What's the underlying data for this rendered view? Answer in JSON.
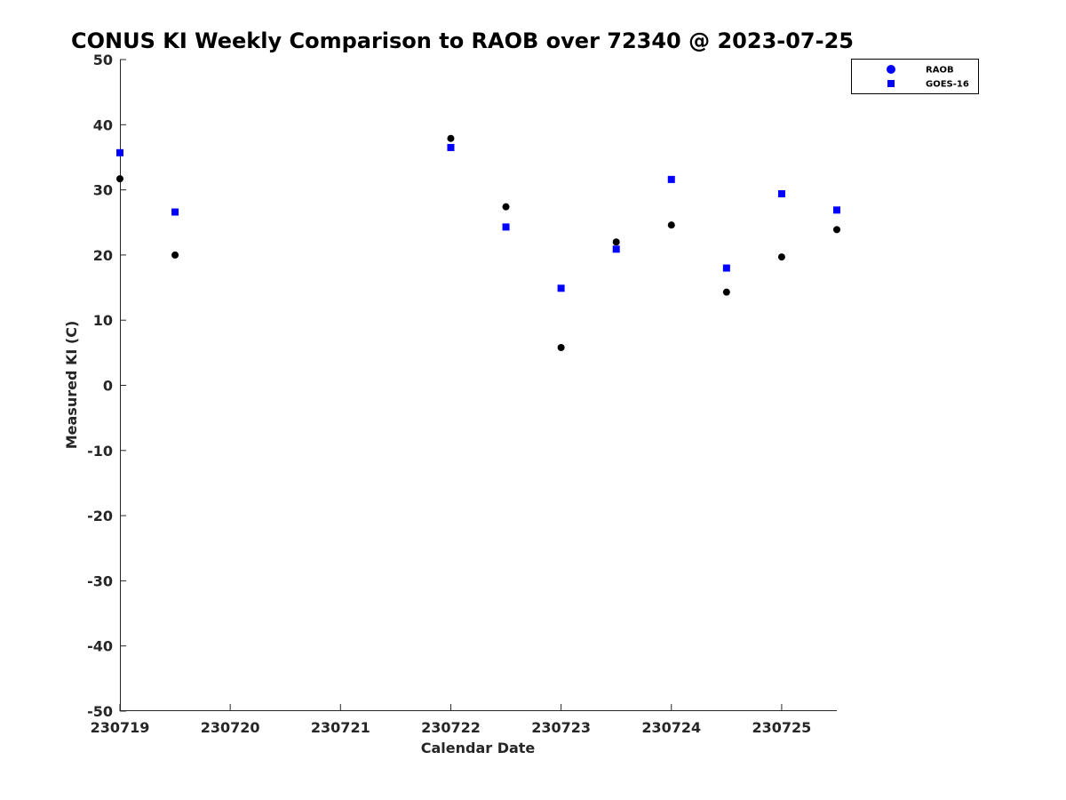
{
  "chart_data": {
    "type": "scatter",
    "title": "CONUS KI Weekly Comparison to RAOB over 72340 @ 2023-07-25",
    "xlabel": "Calendar Date",
    "ylabel": "Measured KI (C)",
    "xlim": [
      "230719",
      "230725.5"
    ],
    "ylim": [
      -50,
      50
    ],
    "x_ticks": [
      "230719",
      "230720",
      "230721",
      "230722",
      "230723",
      "230724",
      "230725"
    ],
    "y_ticks": [
      "50",
      "40",
      "30",
      "20",
      "10",
      "0",
      "-10",
      "-20",
      "-30",
      "-40",
      "-50"
    ],
    "grid": false,
    "legend_position": "top-right",
    "series": [
      {
        "name": "RAOB",
        "marker": "circle",
        "color": "#000000",
        "legend_color": "#0000ff",
        "points": [
          {
            "x": "230719",
            "y": 31.7
          },
          {
            "x": "230719.5",
            "y": 20.0
          },
          {
            "x": "230722",
            "y": 37.9
          },
          {
            "x": "230722.5",
            "y": 27.4
          },
          {
            "x": "230723",
            "y": 5.8
          },
          {
            "x": "230723.5",
            "y": 22.0
          },
          {
            "x": "230724",
            "y": 24.6
          },
          {
            "x": "230724.5",
            "y": 14.3
          },
          {
            "x": "230725",
            "y": 19.7
          },
          {
            "x": "230725.5",
            "y": 23.9
          }
        ]
      },
      {
        "name": "GOES-16",
        "marker": "square",
        "color": "#0000ff",
        "legend_color": "#0000ff",
        "points": [
          {
            "x": "230719",
            "y": 35.7
          },
          {
            "x": "230719.5",
            "y": 26.6
          },
          {
            "x": "230722",
            "y": 36.5
          },
          {
            "x": "230722.5",
            "y": 24.3
          },
          {
            "x": "230723",
            "y": 14.9
          },
          {
            "x": "230723.5",
            "y": 20.9
          },
          {
            "x": "230724",
            "y": 31.6
          },
          {
            "x": "230724.5",
            "y": 18.0
          },
          {
            "x": "230725",
            "y": 29.4
          },
          {
            "x": "230725.5",
            "y": 26.9
          }
        ]
      }
    ]
  }
}
